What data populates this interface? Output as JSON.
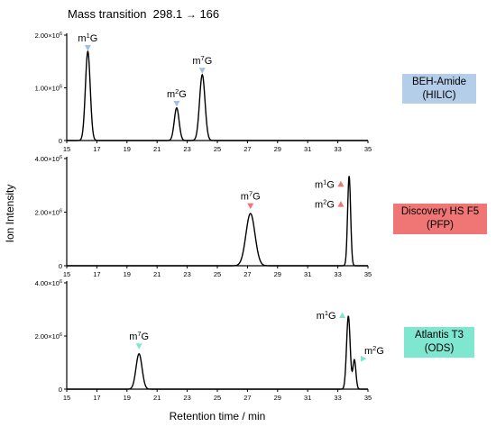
{
  "header": {
    "title_label": "Mass transition",
    "title_value": "298.1",
    "title_arrow": "→",
    "title_product": "166"
  },
  "shared_axes": {
    "xlabel": "Retention time / min",
    "ylabel": "Ion Intensity"
  },
  "chart_data": [
    {
      "type": "line",
      "column": [
        "BEH-Amide",
        "(HILIC)"
      ],
      "column_color": "#b4cde8",
      "marker_color": "#9fbfe6",
      "xlim": [
        15,
        35
      ],
      "xticks": [
        15,
        17,
        19,
        21,
        23,
        25,
        27,
        29,
        31,
        33,
        35
      ],
      "ylim": [
        0,
        2000000
      ],
      "yticks": [
        {
          "value": 0,
          "label": "0"
        },
        {
          "value": 1000000,
          "label": "1.00×10^6"
        },
        {
          "value": 2000000,
          "label": "2.00×10^6"
        }
      ],
      "peaks": [
        {
          "rt": 16.4,
          "height": 1690000,
          "sigma": 0.16
        },
        {
          "rt": 22.3,
          "height": 620000,
          "sigma": 0.16
        },
        {
          "rt": 24.0,
          "height": 1250000,
          "sigma": 0.18
        }
      ],
      "annotations": [
        {
          "base": "m",
          "sup": "1",
          "rest": "G",
          "x": 16.4,
          "y": 1760000,
          "label_side": "above"
        },
        {
          "base": "m",
          "sup": "2",
          "rest": "G",
          "x": 22.3,
          "y": 700000,
          "label_side": "above"
        },
        {
          "base": "m",
          "sup": "7",
          "rest": "G",
          "x": 24.0,
          "y": 1330000,
          "label_side": "above"
        }
      ]
    },
    {
      "type": "line",
      "column": [
        "Discovery HS F5",
        "(PFP)"
      ],
      "column_color": "#f07575",
      "marker_color": "#f07575",
      "xlim": [
        15,
        35
      ],
      "xticks": [
        15,
        17,
        19,
        21,
        23,
        25,
        27,
        29,
        31,
        33,
        35
      ],
      "ylim": [
        0,
        4000000
      ],
      "yticks": [
        {
          "value": 0,
          "label": "0"
        },
        {
          "value": 2000000,
          "label": "2.00×10^6"
        },
        {
          "value": 4000000,
          "label": "4.00×10^6"
        }
      ],
      "peaks": [
        {
          "rt": 27.2,
          "height": 1950000,
          "sigma": 0.3
        },
        {
          "rt": 33.75,
          "height": 3350000,
          "sigma": 0.1
        }
      ],
      "annotations": [
        {
          "base": "m",
          "sup": "7",
          "rest": "G",
          "x": 27.2,
          "y": 2230000,
          "label_side": "above"
        },
        {
          "base": "m",
          "sup": "1",
          "rest": "G",
          "x": 33.2,
          "y": 3050000,
          "label_side": "left"
        },
        {
          "base": "m",
          "sup": "2",
          "rest": "G",
          "x": 33.2,
          "y": 2300000,
          "label_side": "left"
        }
      ]
    },
    {
      "type": "line",
      "column": [
        "Atlantis T3",
        "(ODS)"
      ],
      "column_color": "#7fe6cf",
      "marker_color": "#7fe6cf",
      "xlim": [
        15,
        35
      ],
      "xticks": [
        15,
        17,
        19,
        21,
        23,
        25,
        27,
        29,
        31,
        33,
        35
      ],
      "ylim": [
        0,
        4000000
      ],
      "yticks": [
        {
          "value": 0,
          "label": "0"
        },
        {
          "value": 2000000,
          "label": "2.00×10^6"
        },
        {
          "value": 4000000,
          "label": "4.00×10^6"
        }
      ],
      "peaks": [
        {
          "rt": 19.8,
          "height": 1330000,
          "sigma": 0.2
        },
        {
          "rt": 33.7,
          "height": 2750000,
          "sigma": 0.12
        },
        {
          "rt": 34.1,
          "height": 1100000,
          "sigma": 0.1
        }
      ],
      "annotations": [
        {
          "base": "m",
          "sup": "7",
          "rest": "G",
          "x": 19.8,
          "y": 1620000,
          "label_side": "above"
        },
        {
          "base": "m",
          "sup": "1",
          "rest": "G",
          "x": 33.3,
          "y": 2780000,
          "label_side": "left"
        },
        {
          "base": "m",
          "sup": "2",
          "rest": "G",
          "x": 34.7,
          "y": 1150000,
          "label_side": "right"
        }
      ]
    }
  ]
}
